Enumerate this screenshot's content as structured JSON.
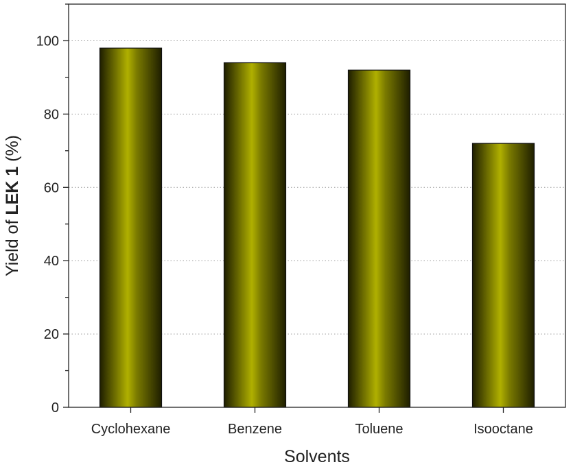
{
  "chart_data": {
    "type": "bar",
    "categories": [
      "Cyclohexane",
      "Benzene",
      "Toluene",
      "Isooctane"
    ],
    "values": [
      98,
      94,
      92,
      72
    ],
    "xlabel": "Solvents",
    "ylabel": {
      "prefix": "Yield of ",
      "bold": "LEK 1",
      "suffix": " (%)"
    },
    "ylim": [
      0,
      110
    ],
    "yticks": [
      0,
      20,
      40,
      60,
      80,
      100
    ],
    "grid": "horizontal dotted at major ticks",
    "bar_color": "#7a7a00",
    "bar_color_light": "#b0b000",
    "bar_color_dark": "#1e1e00"
  }
}
